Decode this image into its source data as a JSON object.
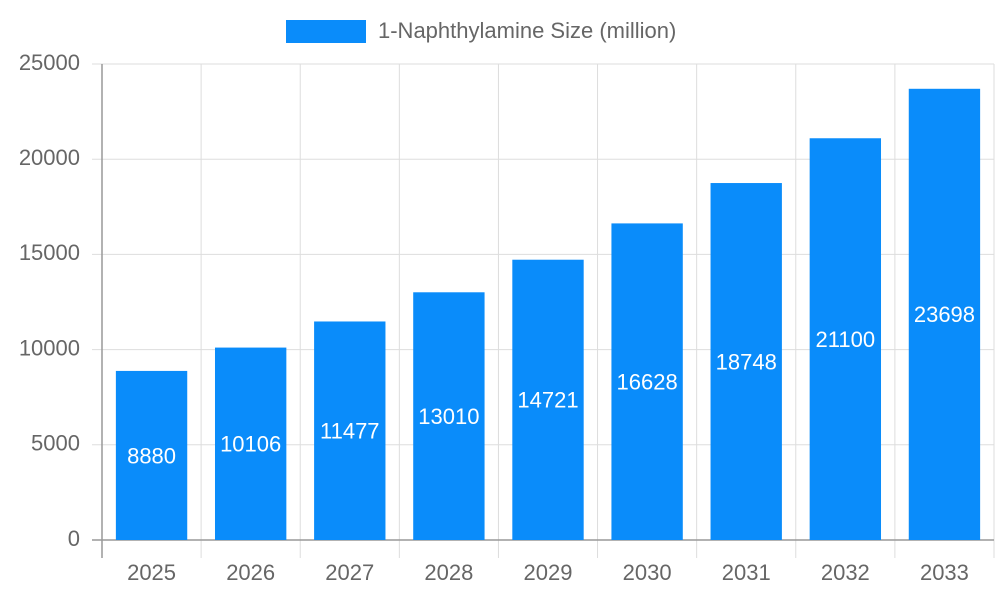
{
  "chart_data": {
    "type": "bar",
    "legend": "1-Naphthylamine Size (million)",
    "categories": [
      "2025",
      "2026",
      "2027",
      "2028",
      "2029",
      "2030",
      "2031",
      "2032",
      "2033"
    ],
    "values": [
      8880,
      10106,
      11477,
      13010,
      14721,
      16628,
      18748,
      21100,
      23698
    ],
    "color": "#0a8cfa",
    "ylim": [
      0,
      25000
    ],
    "yticks": [
      0,
      5000,
      10000,
      15000,
      20000,
      25000
    ],
    "grid": true,
    "legend_position": "top",
    "data_labels": true
  }
}
